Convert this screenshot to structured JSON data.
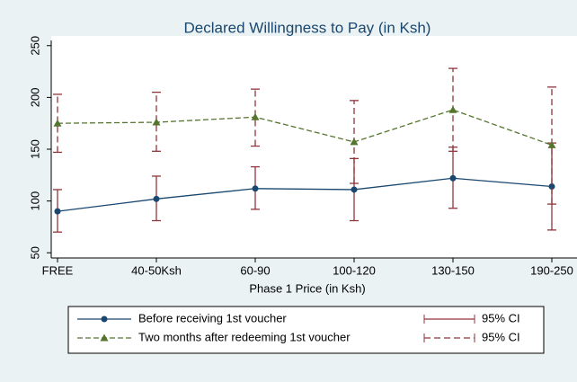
{
  "chart_data": {
    "type": "line",
    "title": "Declared Willingness to Pay (in Ksh)",
    "x_label": "Phase 1 Price (in Ksh)",
    "categories": [
      "FREE",
      "40-50Ksh",
      "60-90",
      "100-120",
      "130-150",
      "190-250"
    ],
    "ylim": [
      45,
      255
    ],
    "yticks": [
      50,
      100,
      150,
      200,
      250
    ],
    "series": [
      {
        "name": "Before receiving 1st voucher",
        "color": "#1a476f",
        "marker": "circle",
        "values": [
          90,
          102,
          112,
          111,
          122,
          114
        ],
        "ci_low": [
          70,
          81,
          92,
          81,
          93,
          72
        ],
        "ci_high": [
          111,
          124,
          133,
          141,
          152,
          156
        ],
        "ci_name": "95% CI",
        "ci_color": "#90353b",
        "ci_dash": false
      },
      {
        "name": "Two months after redeeming 1st voucher",
        "color": "#55752f",
        "marker": "triangle",
        "values": [
          175,
          176,
          181,
          157,
          188,
          154
        ],
        "ci_low": [
          147,
          148,
          153,
          117,
          148,
          97
        ],
        "ci_high": [
          203,
          205,
          208,
          197,
          228,
          210
        ],
        "ci_name": "95% CI",
        "ci_color": "#90353b",
        "ci_dash": true
      }
    ]
  }
}
